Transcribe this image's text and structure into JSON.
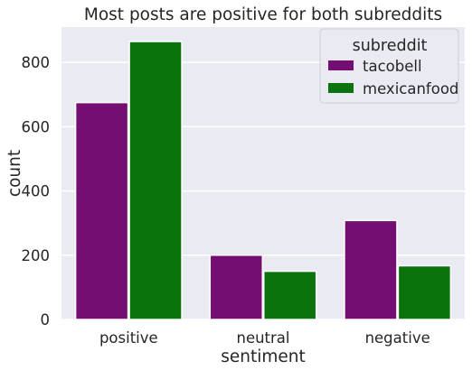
{
  "chart_data": {
    "type": "bar",
    "title": "Most posts are positive for both subreddits",
    "xlabel": "sentiment",
    "ylabel": "count",
    "categories": [
      "positive",
      "neutral",
      "negative"
    ],
    "series": [
      {
        "name": "tacobell",
        "values": [
          675,
          200,
          308
        ],
        "color": "#750e72"
      },
      {
        "name": "mexicanfood",
        "values": [
          865,
          150,
          167
        ],
        "color": "#0b730b"
      }
    ],
    "ylim": [
      0,
      910
    ],
    "yticks": [
      0,
      200,
      400,
      600,
      800
    ],
    "legend": {
      "title": "subreddit",
      "placement": "top-right"
    },
    "grid": true,
    "background": "#eaeaf2"
  }
}
